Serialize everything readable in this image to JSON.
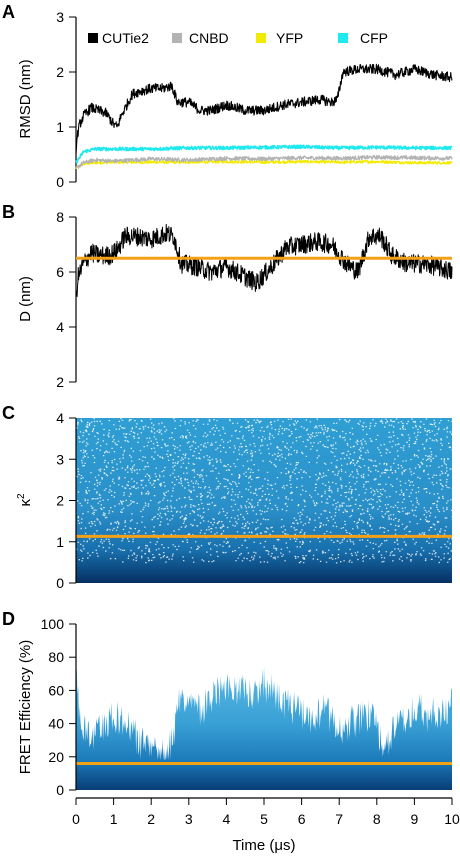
{
  "colors": {
    "cutie2": "#000000",
    "cnbd": "#b3b3b3",
    "yfp": "#f2ea00",
    "cfp": "#1de9ee",
    "mean_line": "#f5a118",
    "density_light": "#2f9fd4",
    "density_dark": "#073f78",
    "density_sparse": "#58b6e2"
  },
  "chart_data": [
    {
      "panel": "A",
      "type": "line",
      "ylabel": "RMSD (nm)",
      "ylim": [
        0,
        3
      ],
      "yticks": [
        "0",
        "1",
        "2",
        "3"
      ],
      "xlim": [
        0,
        10
      ],
      "legend": {
        "placement": "top",
        "entries": [
          "CUTie2",
          "CNBD",
          "YFP",
          "CFP"
        ]
      },
      "series": [
        {
          "name": "CUTie2",
          "x": [
            0,
            0.05,
            0.1,
            0.2,
            0.4,
            0.6,
            0.8,
            1.0,
            1.1,
            1.2,
            1.35,
            1.5,
            1.7,
            2.0,
            2.3,
            2.55,
            2.7,
            3.0,
            3.3,
            3.6,
            4.0,
            4.5,
            5.0,
            5.5,
            6.0,
            6.5,
            6.8,
            6.95,
            7.1,
            7.5,
            8.0,
            8.5,
            9.0,
            9.5,
            10.0
          ],
          "y": [
            0.6,
            0.9,
            1.05,
            1.2,
            1.35,
            1.3,
            1.25,
            1.05,
            1.0,
            1.2,
            1.4,
            1.6,
            1.65,
            1.7,
            1.7,
            1.75,
            1.45,
            1.45,
            1.3,
            1.3,
            1.4,
            1.3,
            1.3,
            1.4,
            1.45,
            1.5,
            1.45,
            1.5,
            2.0,
            2.05,
            2.05,
            1.95,
            2.05,
            1.95,
            1.9
          ]
        },
        {
          "name": "CNBD",
          "x": [
            0,
            0.2,
            0.5,
            1,
            2,
            3,
            4,
            5,
            6,
            7,
            8,
            9,
            10
          ],
          "y": [
            0.25,
            0.35,
            0.4,
            0.38,
            0.42,
            0.4,
            0.43,
            0.42,
            0.44,
            0.43,
            0.45,
            0.44,
            0.43
          ]
        },
        {
          "name": "YFP",
          "x": [
            0,
            0.2,
            0.5,
            1,
            2,
            3,
            4,
            5,
            6,
            7,
            8,
            9,
            10
          ],
          "y": [
            0.25,
            0.33,
            0.35,
            0.36,
            0.36,
            0.36,
            0.37,
            0.36,
            0.37,
            0.36,
            0.37,
            0.35,
            0.35
          ]
        },
        {
          "name": "CFP",
          "x": [
            0,
            0.2,
            0.5,
            1,
            2,
            3,
            4,
            5,
            6,
            7,
            8,
            9,
            10
          ],
          "y": [
            0.35,
            0.55,
            0.6,
            0.6,
            0.6,
            0.62,
            0.62,
            0.63,
            0.64,
            0.62,
            0.63,
            0.62,
            0.62
          ]
        }
      ]
    },
    {
      "panel": "B",
      "type": "line",
      "ylabel": "D (nm)",
      "ylim": [
        2,
        8
      ],
      "yticks": [
        "2",
        "4",
        "6",
        "8"
      ],
      "xlim": [
        0,
        10
      ],
      "reference_line": 6.5,
      "series": [
        {
          "name": "",
          "x": [
            0,
            0.05,
            0.2,
            0.4,
            0.6,
            0.9,
            1.1,
            1.3,
            1.6,
            2.0,
            2.4,
            2.6,
            2.8,
            3.2,
            3.6,
            4.0,
            4.4,
            4.8,
            5.2,
            5.6,
            6.0,
            6.4,
            6.8,
            7.2,
            7.5,
            7.8,
            8.1,
            8.4,
            8.8,
            9.2,
            9.6,
            10.0
          ],
          "y": [
            4.9,
            5.8,
            6.3,
            6.7,
            6.6,
            6.6,
            6.8,
            7.3,
            7.3,
            7.2,
            7.4,
            7.3,
            6.3,
            6.2,
            6.0,
            6.2,
            5.9,
            5.6,
            6.2,
            6.9,
            7.0,
            7.1,
            7.0,
            6.3,
            6.0,
            7.3,
            7.3,
            6.6,
            6.3,
            6.3,
            6.2,
            6.0
          ]
        }
      ]
    },
    {
      "panel": "C",
      "type": "heatmap",
      "ylabel": "κ²",
      "ylim": [
        0,
        4
      ],
      "yticks": [
        "0",
        "1",
        "2",
        "3",
        "4"
      ],
      "xlim": [
        0,
        10
      ],
      "reference_line": 1.13
    },
    {
      "panel": "D",
      "type": "heatmap",
      "ylabel": "FRET Efficiency (%)",
      "xlabel": "Time (μs)",
      "ylim": [
        0,
        100
      ],
      "yticks": [
        "0",
        "20",
        "40",
        "60",
        "80",
        "100"
      ],
      "xlim": [
        0,
        10
      ],
      "xticks": [
        "0",
        "1",
        "2",
        "3",
        "4",
        "5",
        "6",
        "7",
        "8",
        "9",
        "10"
      ],
      "reference_line": 16,
      "upper_envelope": {
        "x": [
          0,
          0.15,
          0.4,
          0.8,
          1.2,
          1.6,
          2.0,
          2.4,
          2.6,
          2.8,
          3.2,
          3.6,
          4.0,
          4.4,
          4.8,
          5.0,
          5.4,
          5.8,
          6.2,
          6.6,
          7.0,
          7.4,
          7.8,
          8.2,
          8.6,
          9.0,
          9.4,
          9.8,
          10.0
        ],
        "y": [
          80,
          50,
          45,
          52,
          55,
          42,
          35,
          32,
          45,
          70,
          58,
          66,
          72,
          70,
          68,
          75,
          66,
          60,
          55,
          60,
          48,
          52,
          56,
          38,
          50,
          60,
          55,
          60,
          62
        ]
      }
    }
  ],
  "panels": {
    "a": {
      "letter": "A",
      "ylabel": "RMSD (nm)",
      "ticks": [
        "0",
        "1",
        "2",
        "3"
      ]
    },
    "b": {
      "letter": "B",
      "ylabel": "D (nm)",
      "ticks": [
        "2",
        "4",
        "6",
        "8"
      ]
    },
    "c": {
      "letter": "C",
      "ylabel_main": "κ",
      "ylabel_sup": "2",
      "ticks": [
        "0",
        "1",
        "2",
        "3",
        "4"
      ]
    },
    "d": {
      "letter": "D",
      "ylabel": "FRET Efficiency (%)",
      "ticks": [
        "0",
        "20",
        "40",
        "60",
        "80",
        "100"
      ]
    }
  },
  "legend": {
    "cutie2": "CUTie2",
    "cnbd": "CNBD",
    "yfp": "YFP",
    "cfp": "CFP"
  },
  "xaxis": {
    "label": "Time (μs)",
    "ticks": [
      "0",
      "1",
      "2",
      "3",
      "4",
      "5",
      "6",
      "7",
      "8",
      "9",
      "10"
    ]
  }
}
